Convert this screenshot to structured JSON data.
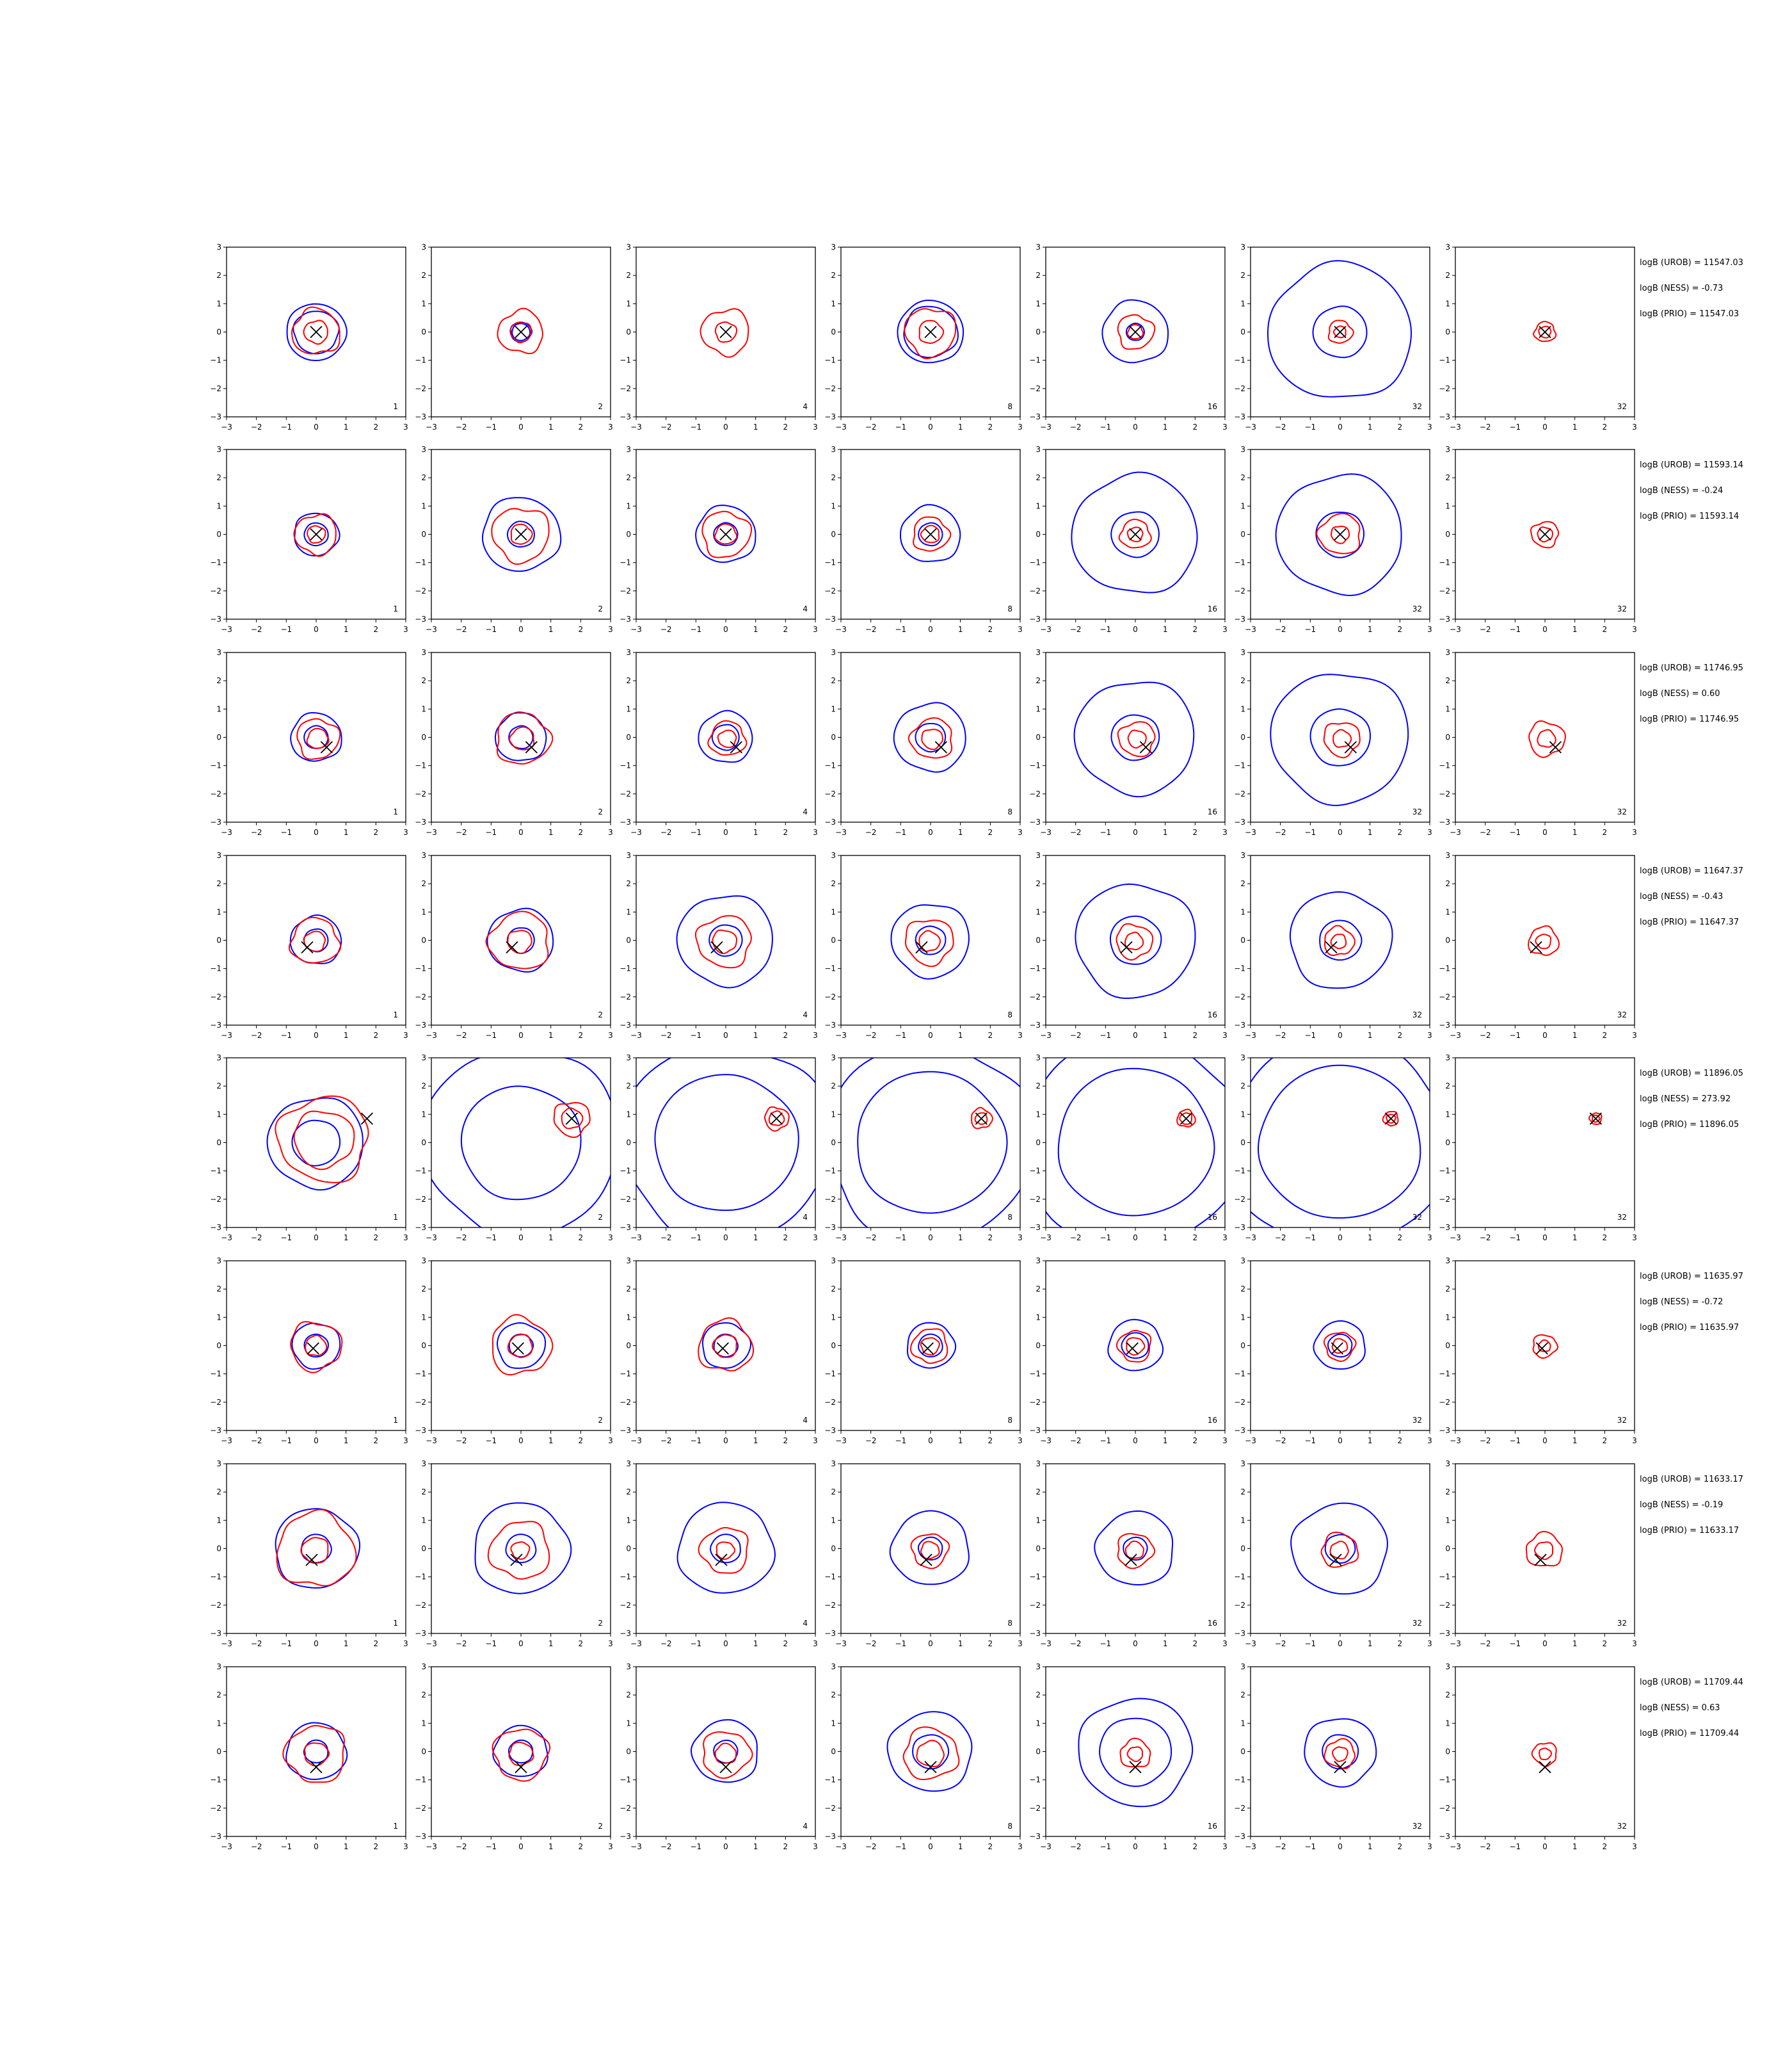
{
  "chart_data": {
    "type": "contour-grid",
    "axes": {
      "xlim": [
        -3,
        3
      ],
      "ylim": [
        -3,
        3
      ],
      "xticks": [
        -3,
        -2,
        -1,
        0,
        1,
        2,
        3
      ],
      "yticks": [
        -3,
        -2,
        -1,
        0,
        1,
        2,
        3
      ]
    },
    "colors": {
      "reference": "#0000ff",
      "estimate": "#ff0000",
      "marker": "#000000"
    },
    "columns": [
      {
        "label": "1"
      },
      {
        "label": "2"
      },
      {
        "label": "4"
      },
      {
        "label": "8"
      },
      {
        "label": "16"
      },
      {
        "label": "32"
      },
      {
        "label": "32"
      }
    ],
    "rows": [
      {
        "marker": [
          0,
          0
        ],
        "blue": [
          [
            0.75,
            1.0
          ],
          [
            0.35,
            0.3
          ],
          [
            null,
            null
          ],
          [
            0.9,
            1.1
          ],
          [
            1.1,
            0.3
          ],
          [
            2.4,
            0.9
          ],
          [
            null,
            null
          ]
        ],
        "red": [
          [
            0.8,
            0.4
          ],
          [
            0.75,
            0.35
          ],
          [
            0.8,
            0.35
          ],
          [
            0.85,
            0.4
          ],
          [
            0.6,
            0.25
          ],
          [
            0.4,
            0.2
          ],
          [
            0.35,
            0.2
          ]
        ],
        "lines": [
          "logB (UROB) = 11547.03",
          "logB (NESS) = -0.73",
          "logB (PRIO) = 11547.03"
        ]
      },
      {
        "marker": [
          0,
          0
        ],
        "blue": [
          [
            0.75,
            0.4
          ],
          [
            1.3,
            0.45
          ],
          [
            1.0,
            0.4
          ],
          [
            1.0,
            0.4
          ],
          [
            2.1,
            0.8
          ],
          [
            2.1,
            0.8
          ],
          [
            null,
            null
          ]
        ],
        "red": [
          [
            0.7,
            0.3
          ],
          [
            0.95,
            0.35
          ],
          [
            0.8,
            0.35
          ],
          [
            0.6,
            0.3
          ],
          [
            0.5,
            0.25
          ],
          [
            0.7,
            0.3
          ],
          [
            0.45,
            0.25
          ]
        ],
        "lines": [
          "logB (UROB) = 11593.14",
          "logB (NESS) = -0.24",
          "logB (PRIO) = 11593.14"
        ]
      },
      {
        "marker": [
          0.35,
          -0.35
        ],
        "blue": [
          [
            0.85,
            0.4
          ],
          [
            0.85,
            0.4
          ],
          [
            0.9,
            0.45
          ],
          [
            1.2,
            0.5
          ],
          [
            2.0,
            0.8
          ],
          [
            2.3,
            1.0
          ],
          [
            null,
            null
          ]
        ],
        "red": [
          [
            0.7,
            0.35
          ],
          [
            0.9,
            0.4
          ],
          [
            0.6,
            0.3
          ],
          [
            0.7,
            0.35
          ],
          [
            0.6,
            0.3
          ],
          [
            0.6,
            0.3
          ],
          [
            0.6,
            0.3
          ]
        ],
        "lines": [
          "logB (UROB) = 11746.95",
          "logB (NESS) = 0.60",
          "logB (PRIO) = 11746.95"
        ]
      },
      {
        "marker": [
          -0.3,
          -0.25
        ],
        "blue": [
          [
            0.85,
            0.4
          ],
          [
            1.1,
            0.45
          ],
          [
            1.6,
            0.55
          ],
          [
            1.3,
            0.5
          ],
          [
            2.0,
            0.85
          ],
          [
            1.7,
            0.7
          ],
          [
            null,
            null
          ]
        ],
        "red": [
          [
            0.8,
            0.35
          ],
          [
            1.0,
            0.4
          ],
          [
            0.9,
            0.4
          ],
          [
            0.8,
            0.35
          ],
          [
            0.6,
            0.3
          ],
          [
            0.5,
            0.25
          ],
          [
            0.5,
            0.25
          ]
        ],
        "lines": [
          "logB (UROB) = 11647.37",
          "logB (NESS) = -0.43",
          "logB (PRIO) = 11647.37"
        ]
      },
      {
        "marker": [
          1.7,
          0.85
        ],
        "blue": [
          [
            1.6,
            0.8
          ],
          [
            3.3,
            2.0
          ],
          [
            3.5,
            2.4
          ],
          [
            3.5,
            2.5
          ],
          [
            3.7,
            2.6
          ],
          [
            3.7,
            2.7
          ],
          [
            null,
            null
          ]
        ],
        "red": [
          [
            1.5,
            1.0
          ],
          [
            0.6,
            0.35
          ],
          [
            0.4,
            0.25
          ],
          [
            0.35,
            0.2
          ],
          [
            0.3,
            0.2
          ],
          [
            0.25,
            0.15
          ],
          [
            0.2,
            0.12
          ]
        ],
        "lines": [
          "logB (UROB) = 11896.05",
          "logB (NESS) = 273.92",
          "logB (PRIO) = 11896.05"
        ]
      },
      {
        "marker": [
          -0.1,
          -0.1
        ],
        "blue": [
          [
            0.8,
            0.4
          ],
          [
            0.8,
            0.4
          ],
          [
            0.8,
            0.4
          ],
          [
            0.8,
            0.4
          ],
          [
            0.9,
            0.45
          ],
          [
            0.85,
            0.4
          ],
          [
            null,
            null
          ]
        ],
        "red": [
          [
            0.85,
            0.35
          ],
          [
            1.0,
            0.4
          ],
          [
            0.9,
            0.4
          ],
          [
            0.6,
            0.3
          ],
          [
            0.55,
            0.3
          ],
          [
            0.5,
            0.25
          ],
          [
            0.4,
            0.2
          ]
        ],
        "lines": [
          "logB (UROB) = 11635.97",
          "logB (NESS) = -0.72",
          "logB (PRIO) = 11635.97"
        ]
      },
      {
        "marker": [
          -0.15,
          -0.4
        ],
        "blue": [
          [
            1.4,
            0.5
          ],
          [
            1.6,
            0.5
          ],
          [
            1.6,
            0.5
          ],
          [
            1.3,
            0.4
          ],
          [
            1.3,
            0.4
          ],
          [
            1.6,
            0.5
          ],
          [
            null,
            null
          ]
        ],
        "red": [
          [
            1.3,
            0.45
          ],
          [
            1.0,
            0.3
          ],
          [
            0.8,
            0.3
          ],
          [
            0.6,
            0.3
          ],
          [
            0.6,
            0.3
          ],
          [
            0.6,
            0.3
          ],
          [
            0.6,
            0.3
          ]
        ],
        "lines": [
          "logB (UROB) = 11633.17",
          "logB (NESS) = -0.19",
          "logB (PRIO) = 11633.17"
        ]
      },
      {
        "marker": [
          0,
          -0.55
        ],
        "blue": [
          [
            1.0,
            0.4
          ],
          [
            0.9,
            0.4
          ],
          [
            1.1,
            0.4
          ],
          [
            1.4,
            0.6
          ],
          [
            1.9,
            1.2
          ],
          [
            1.2,
            0.6
          ],
          [
            null,
            null
          ]
        ],
        "red": [
          [
            1.0,
            0.4
          ],
          [
            0.9,
            0.4
          ],
          [
            0.8,
            0.35
          ],
          [
            0.9,
            0.45
          ],
          [
            0.5,
            0.25
          ],
          [
            0.5,
            0.25
          ],
          [
            0.4,
            0.2
          ]
        ],
        "lines": [
          "logB (UROB) = 11709.44",
          "logB (NESS) = 0.63",
          "logB (PRIO) = 11709.44"
        ]
      }
    ]
  }
}
